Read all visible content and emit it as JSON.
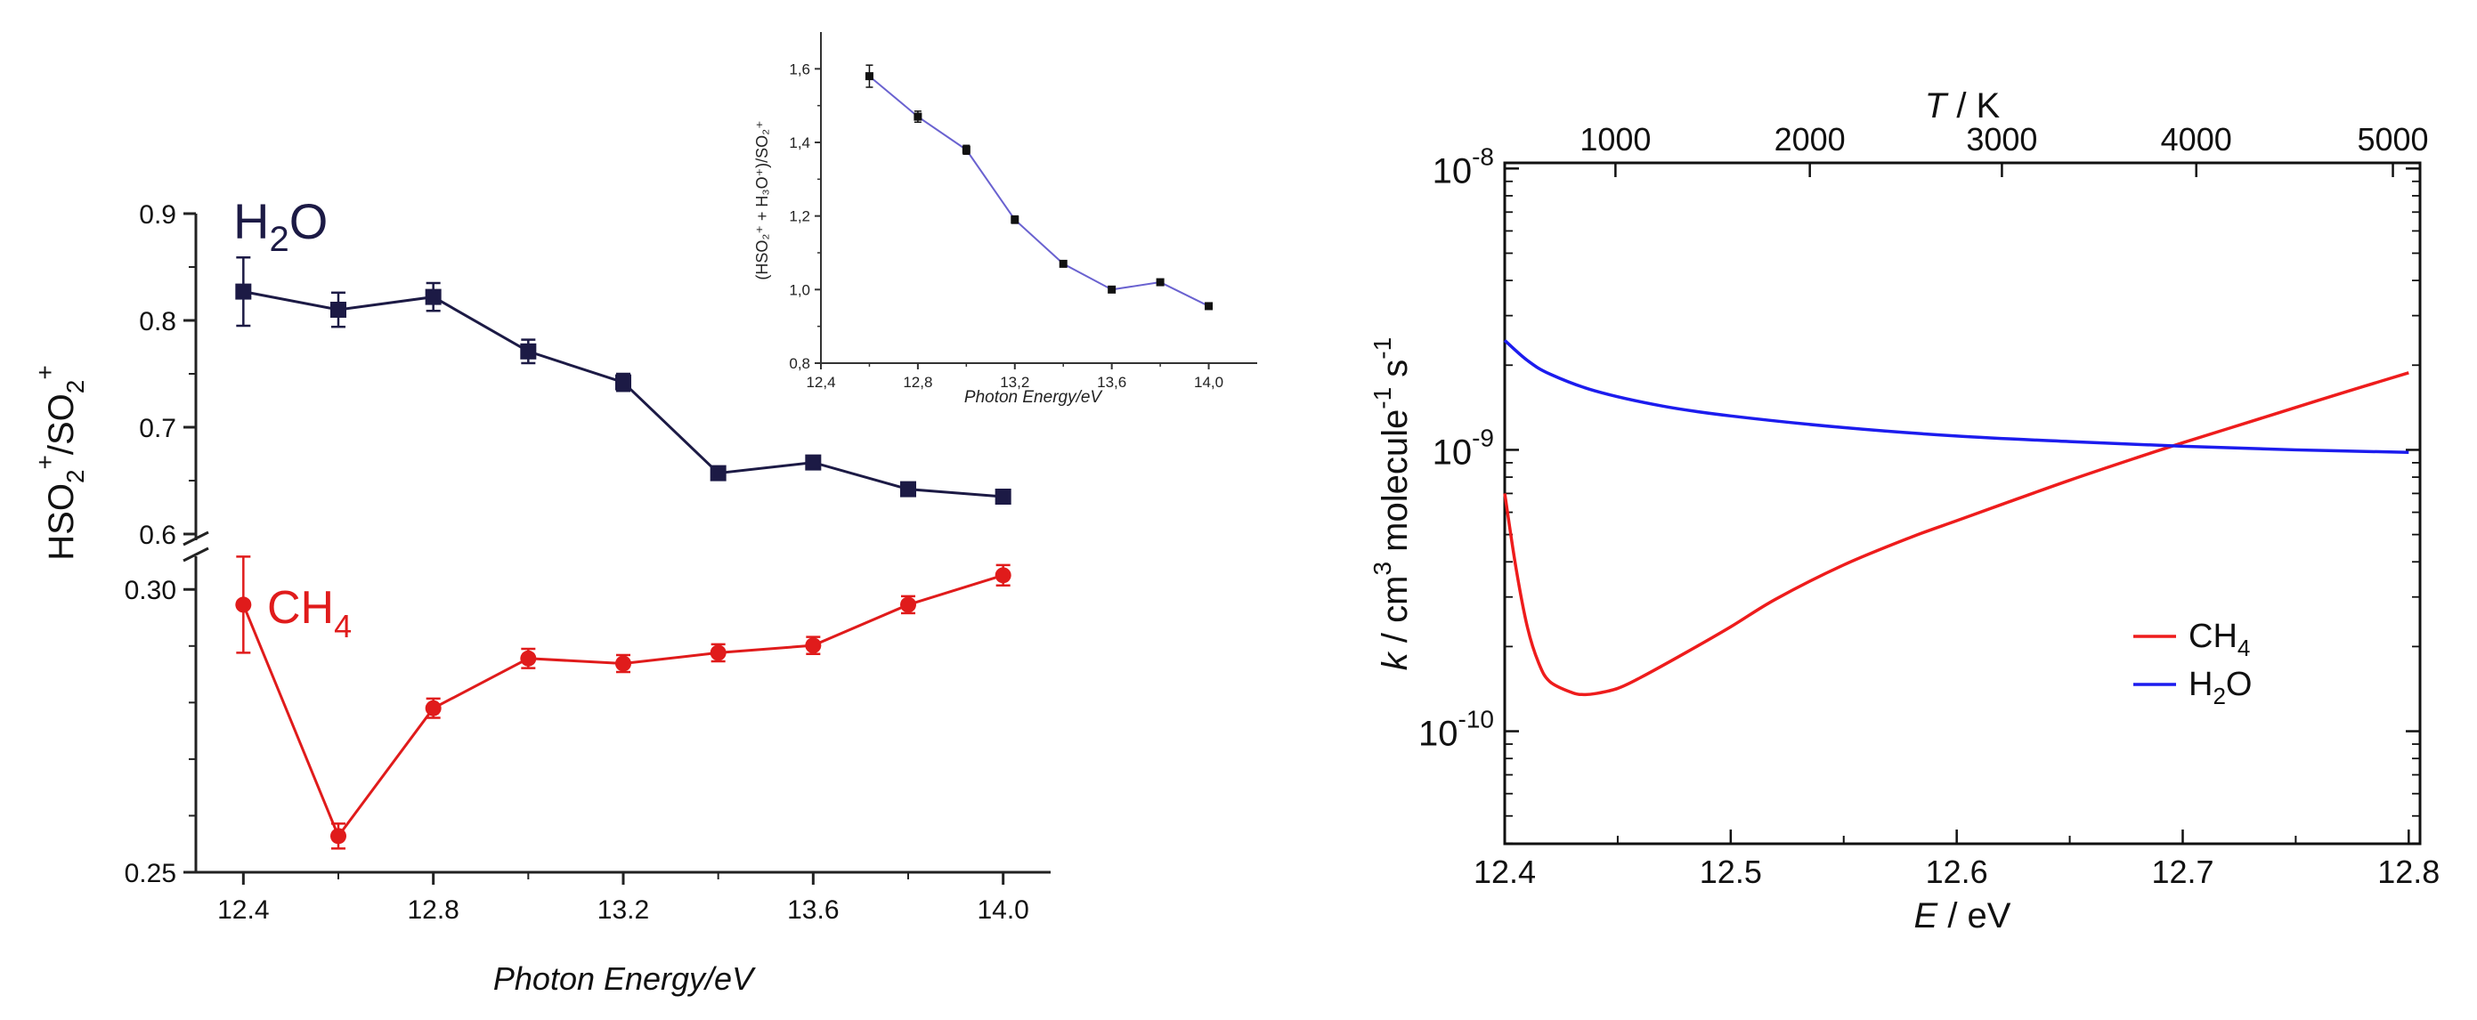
{
  "chart_data": [
    {
      "id": "left",
      "type": "line",
      "title": "",
      "xlabel": "Photon Energy/eV",
      "ylabel": "HSO2+/SO2+",
      "ylabel_parts": {
        "base": "HSO",
        "sub1": "2",
        "sup1": "+",
        "mid": "/SO",
        "sub2": "2",
        "sup2": "+"
      },
      "xlim": [
        12.3,
        14.1
      ],
      "x_ticks": [
        "12.4",
        "12.8",
        "13.2",
        "13.6",
        "14.0"
      ],
      "upper_panel": {
        "ylim": [
          0.6,
          0.9
        ],
        "y_ticks": [
          "0.6",
          "0.7",
          "0.8",
          "0.9"
        ]
      },
      "lower_panel": {
        "ylim": [
          0.25,
          0.3035
        ],
        "y_ticks": [
          "0.25",
          "0.30"
        ]
      },
      "series": [
        {
          "name": "H2O",
          "label_base": "H",
          "label_sub": "2",
          "label_rest": "O",
          "color": "#1c1a45",
          "marker": "square",
          "panel": "upper",
          "x": [
            12.4,
            12.6,
            12.8,
            13.0,
            13.2,
            13.4,
            13.6,
            13.8,
            14.0
          ],
          "y": [
            0.827,
            0.81,
            0.822,
            0.771,
            0.742,
            0.657,
            0.667,
            0.642,
            0.635
          ],
          "err": [
            0.032,
            0.016,
            0.013,
            0.011,
            0.008,
            0.005,
            0.005,
            0.005,
            0.005
          ]
        },
        {
          "name": "CH4",
          "label_base": "CH",
          "label_sub": "4",
          "label_rest": "",
          "color": "#e01b1b",
          "marker": "circle",
          "panel": "lower",
          "x": [
            12.4,
            12.6,
            12.8,
            13.0,
            13.2,
            13.4,
            13.6,
            13.8,
            14.0
          ],
          "y": [
            0.2973,
            0.2564,
            0.279,
            0.2878,
            0.2869,
            0.2888,
            0.2901,
            0.2973,
            0.3025
          ],
          "err": [
            0.0085,
            0.0022,
            0.0017,
            0.0017,
            0.0015,
            0.0015,
            0.0015,
            0.0015,
            0.0018
          ]
        }
      ]
    },
    {
      "id": "inset",
      "type": "line",
      "xlabel": "Photon Energy/eV",
      "ylabel": "(HSO2+ + H3O+)/SO2+",
      "ylabel_text": "(HSO₂⁺ + H₃O⁺)/SO₂⁺",
      "xlim": [
        12.4,
        14.2
      ],
      "ylim": [
        0.8,
        1.7
      ],
      "x_ticks": [
        "12,4",
        "12,8",
        "13,2",
        "13,6",
        "14,0"
      ],
      "y_ticks": [
        "0,8",
        "1,0",
        "1,2",
        "1,4",
        "1,6"
      ],
      "color": "#6a62d0",
      "x": [
        12.6,
        12.8,
        13.0,
        13.2,
        13.4,
        13.6,
        13.8,
        14.0
      ],
      "y": [
        1.58,
        1.47,
        1.38,
        1.19,
        1.07,
        1.0,
        1.02,
        0.955
      ],
      "err": [
        0.03,
        0.015,
        0.012,
        0.01,
        0.008,
        0.006,
        0.006,
        0.006
      ]
    },
    {
      "id": "right",
      "type": "line",
      "xlabel": "E / eV",
      "xlabel_var": "E",
      "xlabel_unit": " / eV",
      "top_xlabel": "T / K",
      "top_xlabel_var": "T",
      "top_xlabel_unit": " / K",
      "ylabel": "k / cm3 molecule-1 s-1",
      "ylabel_parts": {
        "var": "k",
        "a": " / cm",
        "sup1": "3",
        "b": " molecule",
        "sup2": "-1",
        "c": " s",
        "sup3": "-1"
      },
      "xlim": [
        12.4,
        12.805
      ],
      "ylim_log10": [
        -10.4,
        -7.98
      ],
      "yscale": "log",
      "x_ticks": [
        "12.4",
        "12.5",
        "12.6",
        "12.7",
        "12.8"
      ],
      "top_ticks": [
        {
          "label": "1000",
          "E": 12.449
        },
        {
          "label": "2000",
          "E": 12.535
        },
        {
          "label": "3000",
          "E": 12.62
        },
        {
          "label": "4000",
          "E": 12.706
        },
        {
          "label": "5000",
          "E": 12.793
        }
      ],
      "y_tick_exponents": [
        "-8",
        "-9",
        "-10"
      ],
      "legend_position": "lower-right",
      "series": [
        {
          "name": "CH4",
          "label_base": "CH",
          "label_sub": "4",
          "color": "#ee1c1c",
          "x": [
            12.4,
            12.405,
            12.41,
            12.415,
            12.42,
            12.43,
            12.435,
            12.44,
            12.45,
            12.46,
            12.48,
            12.5,
            12.52,
            12.55,
            12.58,
            12.6,
            12.62,
            12.65,
            12.68,
            12.7,
            12.73,
            12.76,
            12.78,
            12.8
          ],
          "y": [
            7e-10,
            3.8e-10,
            2.35e-10,
            1.75e-10,
            1.5e-10,
            1.37e-10,
            1.35e-10,
            1.36e-10,
            1.42e-10,
            1.55e-10,
            1.9e-10,
            2.35e-10,
            2.95e-10,
            3.9e-10,
            4.9e-10,
            5.6e-10,
            6.4e-10,
            7.8e-10,
            9.4e-10,
            1.06e-09,
            1.26e-09,
            1.5e-09,
            1.68e-09,
            1.88e-09
          ]
        },
        {
          "name": "H2O",
          "label_base": "H",
          "label_sub": "2",
          "label_rest": "O",
          "color": "#1c1cee",
          "x": [
            12.4,
            12.41,
            12.42,
            12.44,
            12.47,
            12.5,
            12.55,
            12.6,
            12.65,
            12.7,
            12.75,
            12.8
          ],
          "y": [
            2.45e-09,
            2.08e-09,
            1.86e-09,
            1.62e-09,
            1.43e-09,
            1.32e-09,
            1.2e-09,
            1.12e-09,
            1.07e-09,
            1.03e-09,
            1e-09,
            9.8e-10
          ]
        }
      ]
    }
  ]
}
